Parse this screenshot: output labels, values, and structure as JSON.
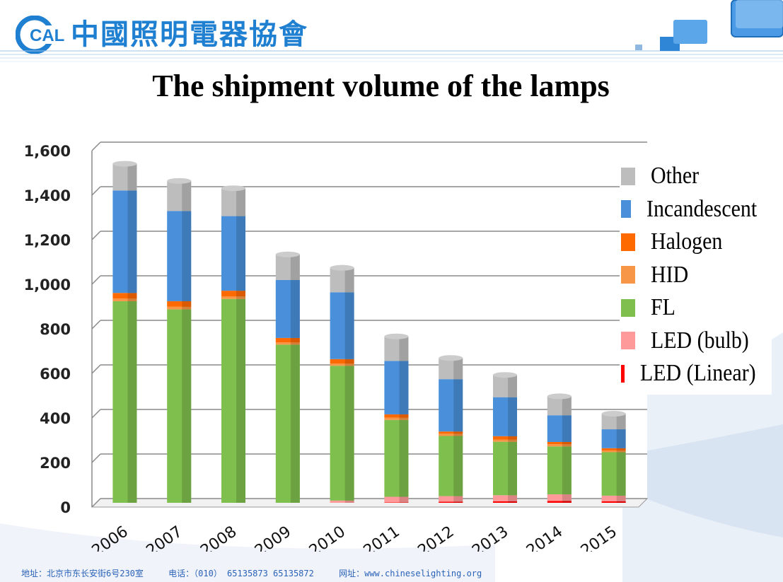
{
  "header": {
    "logo_letters": "CALI",
    "logo_text": "中國照明電器協會"
  },
  "page_title": "The shipment volume of the lamps",
  "legend": [
    {
      "label": "Other",
      "color": "#bdbdbd"
    },
    {
      "label": "Incandescent",
      "color": "#4a8fd9"
    },
    {
      "label": "Halogen",
      "color": "#ff6a00"
    },
    {
      "label": "HID",
      "color": "#f79646"
    },
    {
      "label": "FL",
      "color": "#7fbf4d"
    },
    {
      "label": "LED (bulb)",
      "color": "#ff9a9a"
    },
    {
      "label": "LED (Linear)",
      "color": "#ff0000"
    }
  ],
  "chart_data": {
    "type": "bar",
    "stacked": true,
    "title": "The shipment volume of the lamps",
    "categories": [
      "2006",
      "2007",
      "2008",
      "2009",
      "2010",
      "2011",
      "2012",
      "2013",
      "2014",
      "2015"
    ],
    "ylim": [
      0,
      1600
    ],
    "yticks": [
      "0",
      "200",
      "400",
      "600",
      "800",
      "1,000",
      "1,200",
      "1,400",
      "1,600"
    ],
    "grid": true,
    "legend_position": "right",
    "series": [
      {
        "name": "LED (Linear)",
        "color": "#ff0000",
        "values": [
          0,
          0,
          0,
          0,
          0,
          2,
          5,
          7,
          8,
          7
        ]
      },
      {
        "name": "LED (bulb)",
        "color": "#ff9a9a",
        "values": [
          0,
          0,
          0,
          0,
          10,
          25,
          25,
          27,
          30,
          25
        ]
      },
      {
        "name": "FL",
        "color": "#7fbf4d",
        "values": [
          905,
          868,
          915,
          710,
          605,
          345,
          270,
          240,
          215,
          195
        ]
      },
      {
        "name": "HID",
        "color": "#f79646",
        "values": [
          12,
          12,
          12,
          10,
          10,
          10,
          10,
          10,
          10,
          8
        ]
      },
      {
        "name": "Halogen",
        "color": "#ff6a00",
        "values": [
          25,
          25,
          25,
          20,
          20,
          15,
          10,
          15,
          10,
          10
        ]
      },
      {
        "name": "Incandescent",
        "color": "#4a8fd9",
        "values": [
          460,
          405,
          335,
          260,
          300,
          240,
          235,
          175,
          120,
          85
        ]
      },
      {
        "name": "Other",
        "color": "#bdbdbd",
        "values": [
          120,
          135,
          125,
          115,
          110,
          110,
          95,
          100,
          85,
          70
        ]
      }
    ]
  },
  "footer": {
    "address": "地址：北京市东长安街6号230室",
    "phone": "电话：（010） 65135873 65135872",
    "website": "网址：www.chineselighting.org"
  }
}
